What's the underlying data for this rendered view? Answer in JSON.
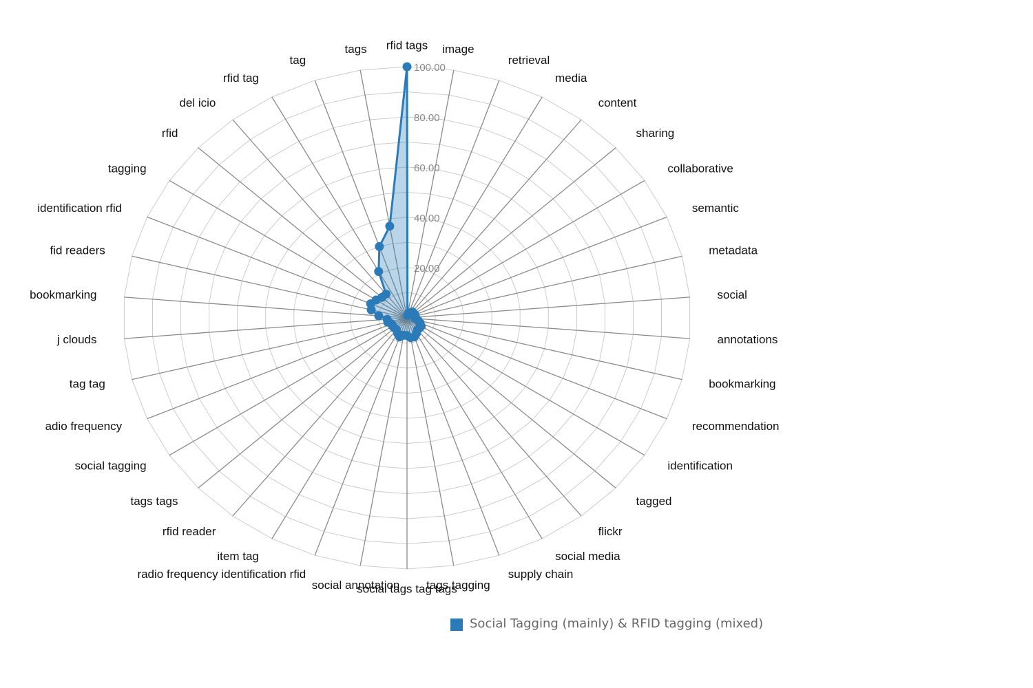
{
  "chart_data": {
    "type": "radar",
    "axes": [
      "rfid tags",
      "image",
      "retrieval",
      "media",
      "content",
      "sharing",
      "collaborative",
      "semantic",
      "metadata",
      "social",
      "annotations",
      "bookmarking",
      "recommendation",
      "identification",
      "tagged",
      "flickr",
      "social media",
      "supply chain",
      "tags tagging",
      "social tags tag tags",
      "social annotation",
      "radio frequency identification rfid",
      "item tag",
      "rfid reader",
      "tags tags",
      "social tagging",
      "adio frequency",
      "tag tag",
      "j clouds",
      "bookmarking",
      "fid readers",
      "identification rfid",
      "tagging",
      "rfid",
      "del icio",
      "rfid tag",
      "tag",
      "tags"
    ],
    "series": [
      {
        "name": "Social Tagging (mainly) & RFID tagging (mixed)",
        "color": "#2b7bb9",
        "values": [
          100,
          1,
          2,
          2,
          3,
          3,
          3,
          3,
          3,
          3,
          3,
          4,
          5,
          6,
          6,
          6,
          7,
          8,
          8,
          7,
          7,
          8,
          7,
          6,
          6,
          6,
          6,
          7,
          7,
          10,
          13,
          14,
          13,
          12,
          12,
          21,
          30,
          37
        ]
      }
    ],
    "rlim": [
      0,
      100
    ],
    "ticks": [
      "20.00",
      "40.00",
      "60.00",
      "80.00",
      "100.00"
    ],
    "tick_values": [
      20,
      40,
      60,
      80,
      100
    ],
    "grid": true,
    "legend_position": "bottom-right"
  }
}
